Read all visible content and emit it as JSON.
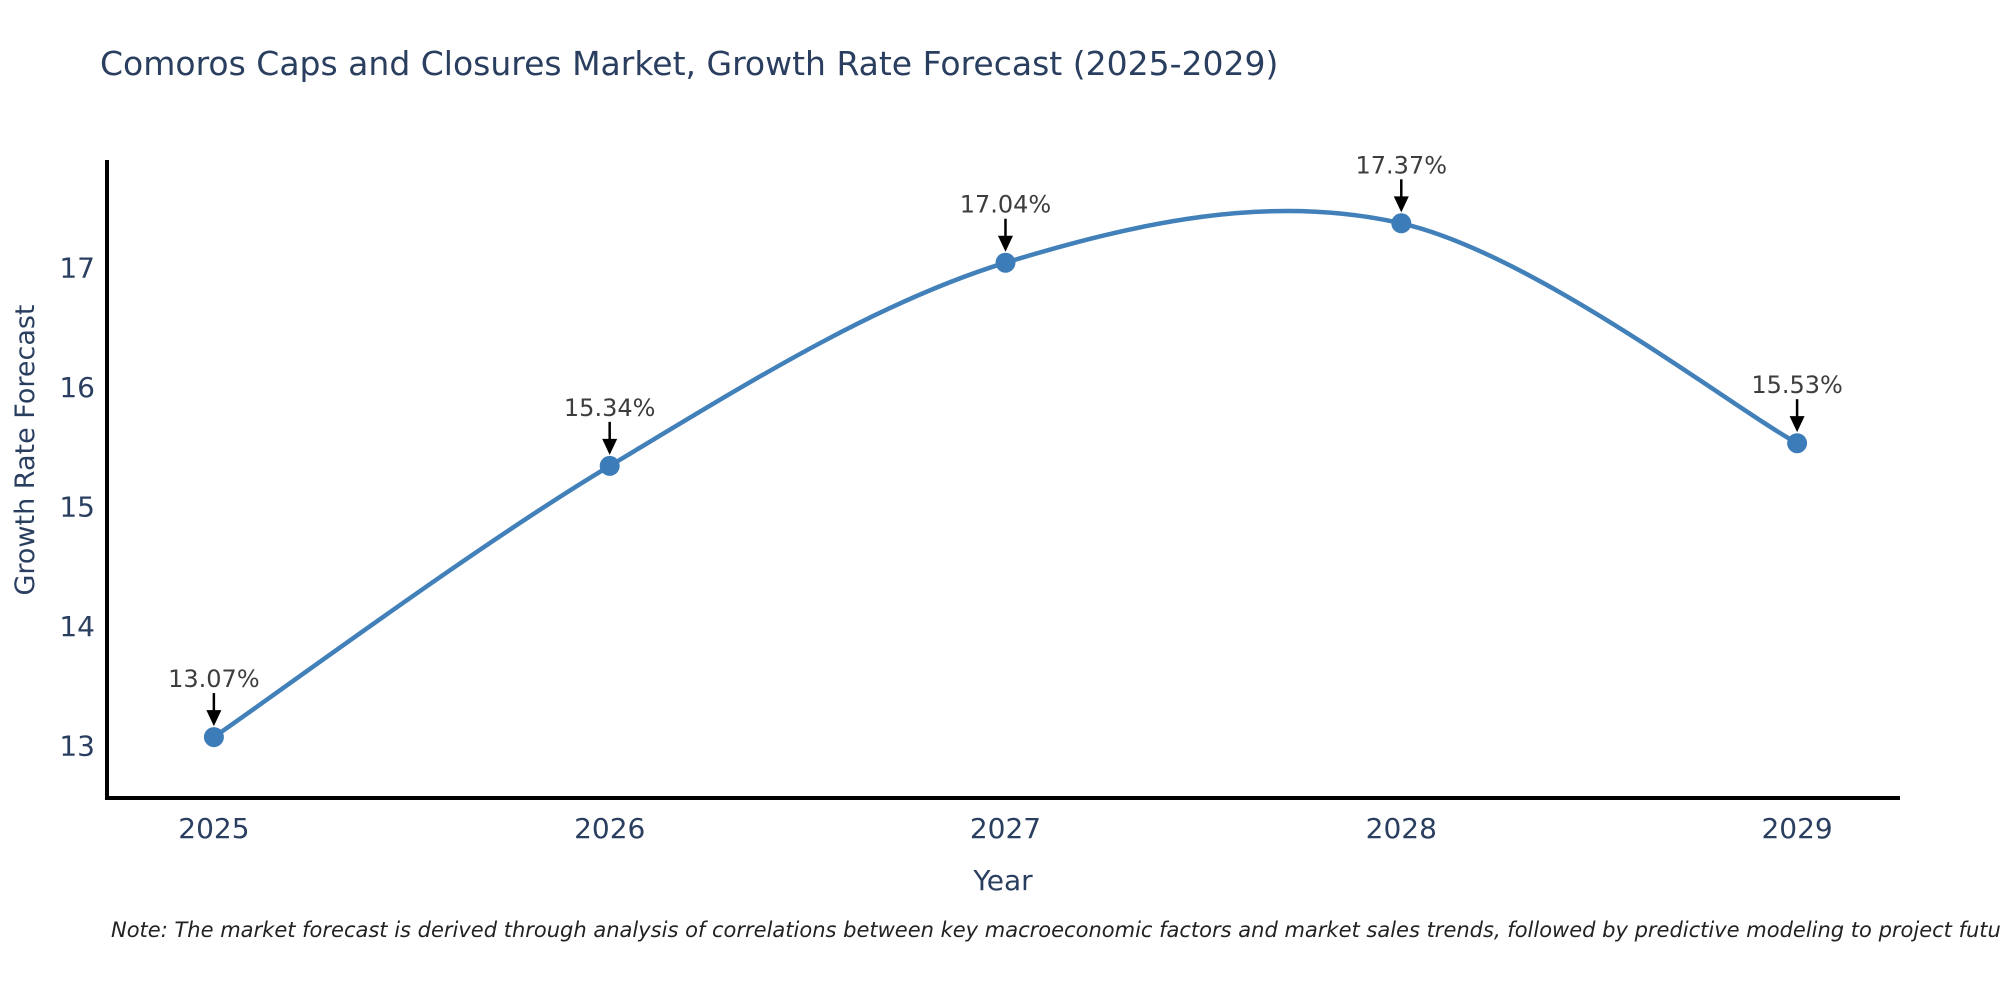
{
  "page": {
    "title": "Comoros Caps and Closures Market, Growth Rate Forecast (2025-2029)",
    "note": "Note: The market forecast is derived through analysis of correlations between key macroeconomic factors and market sales trends, followed by predictive modeling to project future sales"
  },
  "chart_data": {
    "type": "line",
    "title": "Comoros Caps and Closures Market, Growth Rate Forecast (2025-2029)",
    "x": [
      2025,
      2026,
      2027,
      2028,
      2029
    ],
    "categories": [
      "2025",
      "2026",
      "2027",
      "2028",
      "2029"
    ],
    "values": [
      13.07,
      15.34,
      17.04,
      17.37,
      15.53
    ],
    "point_labels": [
      "13.07%",
      "15.34%",
      "17.04%",
      "17.37%",
      "15.53%"
    ],
    "xlabel": "Year",
    "ylabel": "Growth Rate Forecast",
    "yticks": [
      13,
      14,
      15,
      16,
      17
    ],
    "xlim": [
      2024.73,
      2029.26
    ],
    "ylim": [
      12.56,
      17.9
    ],
    "line_shape": "spline",
    "grid": false,
    "legend_position": "none",
    "colors": {
      "line": "#4180b9",
      "marker": "#3c7cb8",
      "axis_line": "#000000",
      "tick_label": "#2a3f5f",
      "axis_title": "#2a3f5f",
      "chart_title": "#2a3f5f",
      "annotation_text": "#3d3d3d",
      "annotation_arrow": "#000000",
      "note_text": "#222222"
    }
  }
}
